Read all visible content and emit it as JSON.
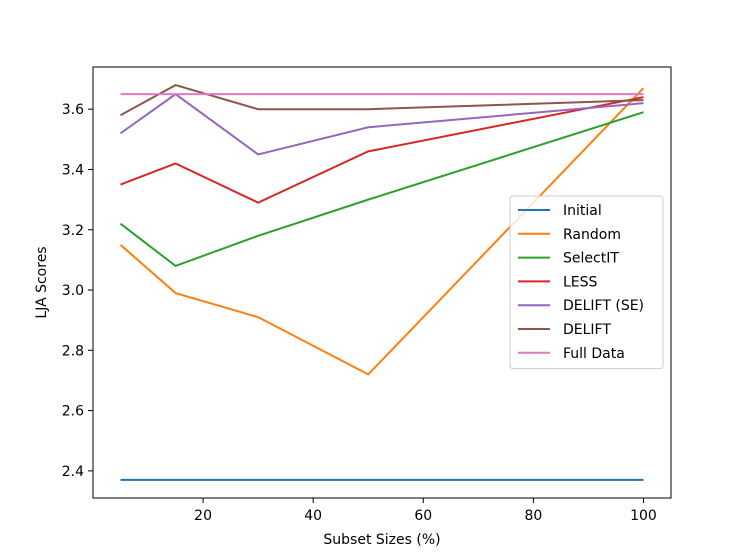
{
  "chart_data": {
    "type": "line",
    "title": "",
    "xlabel": "Subset Sizes (%)",
    "ylabel": "LJA Scores",
    "xlim": [
      0,
      105
    ],
    "ylim": [
      2.31,
      3.74
    ],
    "xticks": [
      20,
      40,
      60,
      80,
      100
    ],
    "yticks": [
      2.4,
      2.6,
      2.8,
      3.0,
      3.2,
      3.4,
      3.6
    ],
    "ytick_labels": [
      "2.4",
      "2.6",
      "2.8",
      "3.0",
      "3.2",
      "3.4",
      "3.6"
    ],
    "x": [
      5,
      15,
      30,
      50,
      100
    ],
    "grid": false,
    "legend_position": "center-right",
    "series": [
      {
        "name": "Initial",
        "color": "#1f77b4",
        "values": [
          2.37,
          2.37,
          2.37,
          2.37,
          2.37
        ]
      },
      {
        "name": "Random",
        "color": "#ff7f0e",
        "values": [
          3.15,
          2.99,
          2.91,
          2.72,
          3.67
        ]
      },
      {
        "name": "SelectIT",
        "color": "#2ca02c",
        "values": [
          3.22,
          3.08,
          3.18,
          3.3,
          3.59
        ]
      },
      {
        "name": "LESS",
        "color": "#d62728",
        "values": [
          3.35,
          3.42,
          3.29,
          3.46,
          3.64
        ]
      },
      {
        "name": "DELIFT (SE)",
        "color": "#9467bd",
        "values": [
          3.52,
          3.65,
          3.45,
          3.54,
          3.62
        ]
      },
      {
        "name": "DELIFT",
        "color": "#8c564b",
        "values": [
          3.58,
          3.68,
          3.6,
          3.6,
          3.63
        ]
      },
      {
        "name": "Full Data",
        "color": "#e377c2",
        "values": [
          3.65,
          3.65,
          3.65,
          3.65,
          3.65
        ]
      }
    ]
  }
}
